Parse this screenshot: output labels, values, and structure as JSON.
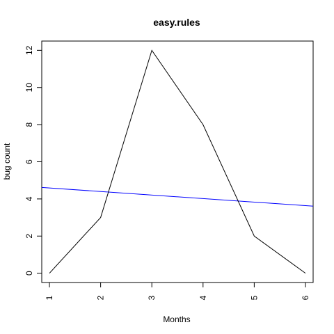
{
  "chart_data": {
    "type": "line",
    "title": "easy.rules",
    "xlabel": "Months",
    "ylabel": "bug count",
    "xlim": [
      0.85,
      6.15
    ],
    "ylim": [
      -0.5,
      12.5
    ],
    "x_ticks": [
      1,
      2,
      3,
      4,
      5,
      6
    ],
    "y_ticks": [
      0,
      2,
      4,
      6,
      8,
      10,
      12
    ],
    "series": [
      {
        "x": [
          1,
          2,
          3,
          4,
          5,
          6
        ],
        "values": [
          0,
          3,
          12,
          8,
          2,
          0
        ],
        "color": "#000000"
      }
    ],
    "trend_line": {
      "intercept": 4.78,
      "slope": -0.19,
      "color": "#0000ff"
    },
    "grid": false,
    "legend": "none"
  }
}
